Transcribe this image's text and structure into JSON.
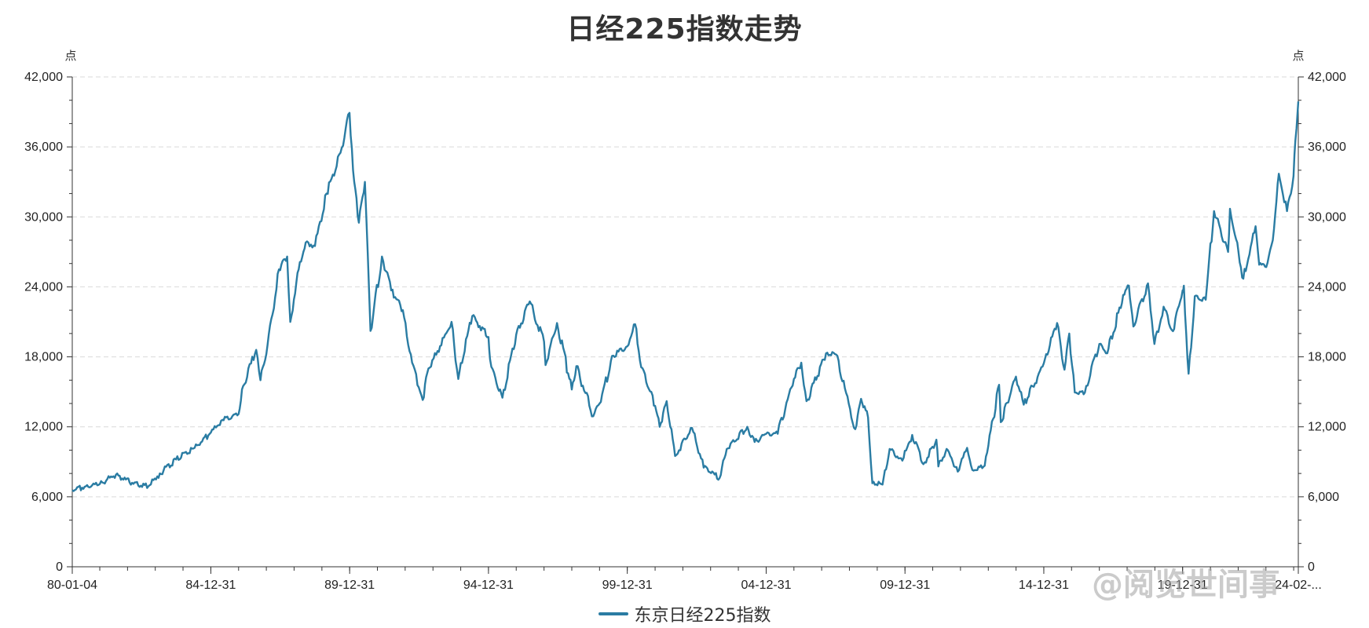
{
  "colors": {
    "line": "#2a7ca3",
    "grid": "#d9d9d9",
    "axis": "#333333"
  },
  "watermark": "@阅览世间事",
  "chart_data": {
    "type": "line",
    "title": "日经225指数走势",
    "y_unit": "点",
    "ylim": [
      0,
      42000
    ],
    "y_ticks": [
      0,
      6000,
      12000,
      18000,
      24000,
      30000,
      36000,
      42000
    ],
    "y_tick_labels": [
      "0",
      "6,000",
      "12,000",
      "18,000",
      "24,000",
      "30,000",
      "36,000",
      "42,000"
    ],
    "x_range": [
      "1980-01-04",
      "2024-03-01"
    ],
    "x_tick_labels": [
      {
        "date": "1980-01-04",
        "label": "80-01-04"
      },
      {
        "date": "1984-12-31",
        "label": "84-12-31"
      },
      {
        "date": "1989-12-31",
        "label": "89-12-31"
      },
      {
        "date": "1994-12-31",
        "label": "94-12-31"
      },
      {
        "date": "1999-12-31",
        "label": "99-12-31"
      },
      {
        "date": "2004-12-31",
        "label": "04-12-31"
      },
      {
        "date": "2009-12-31",
        "label": "09-12-31"
      },
      {
        "date": "2014-12-31",
        "label": "14-12-31"
      },
      {
        "date": "2019-12-31",
        "label": "19-12-31"
      },
      {
        "date": "2024-03-01",
        "label": "24-02-..."
      }
    ],
    "grid": true,
    "legend_position": "bottom-center",
    "series": [
      {
        "name": "东京日经225指数",
        "points": [
          [
            "1980-01-04",
            6560
          ],
          [
            "1980-07-01",
            6900
          ],
          [
            "1981-01-01",
            7100
          ],
          [
            "1981-08-01",
            7900
          ],
          [
            "1982-03-01",
            7200
          ],
          [
            "1982-10-01",
            6900
          ],
          [
            "1983-03-01",
            8000
          ],
          [
            "1983-10-01",
            9200
          ],
          [
            "1984-06-01",
            10200
          ],
          [
            "1984-12-31",
            11500
          ],
          [
            "1985-06-01",
            12600
          ],
          [
            "1985-12-31",
            13100
          ],
          [
            "1986-03-01",
            15500
          ],
          [
            "1986-08-20",
            18600
          ],
          [
            "1986-10-15",
            16000
          ],
          [
            "1987-01-15",
            19000
          ],
          [
            "1987-06-15",
            25500
          ],
          [
            "1987-10-01",
            26600
          ],
          [
            "1987-11-11",
            21000
          ],
          [
            "1988-03-01",
            25500
          ],
          [
            "1988-06-01",
            27800
          ],
          [
            "1988-10-01",
            27500
          ],
          [
            "1989-03-01",
            32000
          ],
          [
            "1989-09-01",
            35500
          ],
          [
            "1989-12-29",
            38916
          ],
          [
            "1990-03-01",
            33000
          ],
          [
            "1990-05-01",
            29500
          ],
          [
            "1990-07-20",
            33000
          ],
          [
            "1990-10-01",
            20220
          ],
          [
            "1991-03-01",
            26600
          ],
          [
            "1991-07-01",
            23700
          ],
          [
            "1991-12-01",
            22000
          ],
          [
            "1992-04-01",
            17500
          ],
          [
            "1992-08-18",
            14300
          ],
          [
            "1992-11-01",
            17000
          ],
          [
            "1993-03-01",
            18500
          ],
          [
            "1993-09-01",
            21000
          ],
          [
            "1993-11-29",
            16100
          ],
          [
            "1994-06-01",
            21500
          ],
          [
            "1994-12-31",
            19700
          ],
          [
            "1995-01-20",
            17800
          ],
          [
            "1995-04-01",
            16200
          ],
          [
            "1995-07-03",
            14500
          ],
          [
            "1995-12-31",
            19900
          ],
          [
            "1996-06-26",
            22750
          ],
          [
            "1996-12-31",
            19300
          ],
          [
            "1997-01-20",
            17300
          ],
          [
            "1997-06-20",
            20900
          ],
          [
            "1997-12-31",
            15200
          ],
          [
            "1998-03-01",
            17200
          ],
          [
            "1998-10-09",
            12900
          ],
          [
            "1999-01-01",
            14000
          ],
          [
            "1999-07-01",
            18100
          ],
          [
            "1999-12-31",
            18900
          ],
          [
            "2000-04-12",
            20800
          ],
          [
            "2000-07-01",
            17100
          ],
          [
            "2000-12-31",
            13800
          ],
          [
            "2001-03-01",
            12000
          ],
          [
            "2001-06-01",
            14200
          ],
          [
            "2001-09-20",
            9500
          ],
          [
            "2002-05-01",
            11900
          ],
          [
            "2002-10-01",
            8500
          ],
          [
            "2003-04-28",
            7610
          ],
          [
            "2003-08-01",
            10100
          ],
          [
            "2004-04-26",
            12000
          ],
          [
            "2004-08-01",
            10700
          ],
          [
            "2004-12-31",
            11400
          ],
          [
            "2005-06-01",
            11400
          ],
          [
            "2005-12-31",
            16100
          ],
          [
            "2006-04-07",
            17500
          ],
          [
            "2006-06-14",
            14200
          ],
          [
            "2007-02-26",
            18300
          ],
          [
            "2007-07-09",
            18200
          ],
          [
            "2007-11-01",
            15300
          ],
          [
            "2008-03-17",
            11800
          ],
          [
            "2008-06-01",
            14400
          ],
          [
            "2008-09-01",
            12800
          ],
          [
            "2008-10-28",
            7160
          ],
          [
            "2009-03-10",
            7050
          ],
          [
            "2009-06-12",
            10100
          ],
          [
            "2009-11-27",
            9100
          ],
          [
            "2010-04-05",
            11300
          ],
          [
            "2010-08-31",
            8800
          ],
          [
            "2011-02-17",
            10900
          ],
          [
            "2011-03-15",
            8600
          ],
          [
            "2011-07-01",
            10100
          ],
          [
            "2011-11-25",
            8160
          ],
          [
            "2012-03-27",
            10200
          ],
          [
            "2012-06-04",
            8300
          ],
          [
            "2012-11-14",
            8660
          ],
          [
            "2013-01-01",
            10400
          ],
          [
            "2013-05-22",
            15600
          ],
          [
            "2013-06-13",
            12400
          ],
          [
            "2013-12-30",
            16300
          ],
          [
            "2014-04-11",
            13900
          ],
          [
            "2014-12-31",
            17450
          ],
          [
            "2015-06-24",
            20900
          ],
          [
            "2015-09-29",
            16900
          ],
          [
            "2015-12-01",
            20000
          ],
          [
            "2016-02-12",
            14950
          ],
          [
            "2016-06-24",
            14950
          ],
          [
            "2016-12-31",
            19100
          ],
          [
            "2017-04-14",
            18300
          ],
          [
            "2017-11-09",
            23300
          ],
          [
            "2018-01-23",
            24100
          ],
          [
            "2018-03-23",
            20600
          ],
          [
            "2018-10-02",
            24300
          ],
          [
            "2018-12-25",
            19100
          ],
          [
            "2019-04-25",
            22300
          ],
          [
            "2019-08-26",
            20200
          ],
          [
            "2019-12-31",
            23700
          ],
          [
            "2020-01-17",
            24100
          ],
          [
            "2020-03-19",
            16550
          ],
          [
            "2020-06-08",
            23200
          ],
          [
            "2020-10-30",
            22900
          ],
          [
            "2021-02-16",
            30500
          ],
          [
            "2021-08-20",
            27000
          ],
          [
            "2021-09-14",
            30700
          ],
          [
            "2022-03-09",
            24700
          ],
          [
            "2022-08-17",
            29200
          ],
          [
            "2022-10-03",
            25900
          ],
          [
            "2023-01-04",
            25700
          ],
          [
            "2023-03-31",
            28000
          ],
          [
            "2023-06-19",
            33700
          ],
          [
            "2023-10-04",
            30500
          ],
          [
            "2023-12-29",
            33500
          ],
          [
            "2024-01-22",
            36500
          ],
          [
            "2024-02-22",
            39100
          ],
          [
            "2024-03-01",
            39900
          ]
        ]
      }
    ]
  }
}
